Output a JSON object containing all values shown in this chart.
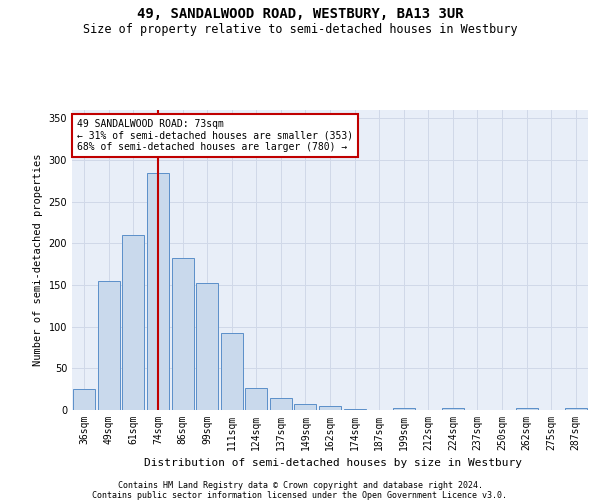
{
  "title": "49, SANDALWOOD ROAD, WESTBURY, BA13 3UR",
  "subtitle": "Size of property relative to semi-detached houses in Westbury",
  "xlabel": "Distribution of semi-detached houses by size in Westbury",
  "ylabel": "Number of semi-detached properties",
  "categories": [
    "36sqm",
    "49sqm",
    "61sqm",
    "74sqm",
    "86sqm",
    "99sqm",
    "111sqm",
    "124sqm",
    "137sqm",
    "149sqm",
    "162sqm",
    "174sqm",
    "187sqm",
    "199sqm",
    "212sqm",
    "224sqm",
    "237sqm",
    "250sqm",
    "262sqm",
    "275sqm",
    "287sqm"
  ],
  "values": [
    25,
    155,
    210,
    285,
    183,
    152,
    92,
    27,
    14,
    7,
    5,
    1,
    0,
    3,
    0,
    2,
    0,
    0,
    2,
    0,
    2
  ],
  "bar_color": "#c9d9ec",
  "bar_edge_color": "#5b8fc9",
  "vline_index": 3,
  "vline_color": "#c00000",
  "annotation_line1": "49 SANDALWOOD ROAD: 73sqm",
  "annotation_line2": "← 31% of semi-detached houses are smaller (353)",
  "annotation_line3": "68% of semi-detached houses are larger (780) →",
  "annotation_box_color": "#ffffff",
  "annotation_box_edge_color": "#c00000",
  "ylim": [
    0,
    360
  ],
  "yticks": [
    0,
    50,
    100,
    150,
    200,
    250,
    300,
    350
  ],
  "grid_color": "#d0d8e8",
  "bg_color": "#e8eef8",
  "footer1": "Contains HM Land Registry data © Crown copyright and database right 2024.",
  "footer2": "Contains public sector information licensed under the Open Government Licence v3.0.",
  "title_fontsize": 10,
  "subtitle_fontsize": 8.5,
  "xlabel_fontsize": 8,
  "ylabel_fontsize": 7.5,
  "tick_fontsize": 7,
  "annotation_fontsize": 7,
  "footer_fontsize": 6
}
